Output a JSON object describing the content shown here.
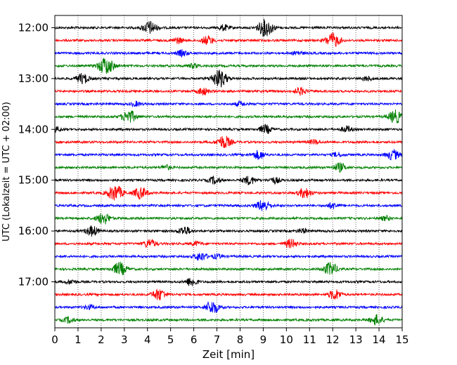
{
  "chart_data": {
    "type": "line",
    "xlabel": "Zeit  [min]",
    "ylabel": "UTC (Lokalzeit = UTC + 02:00)",
    "xlim": [
      0,
      15
    ],
    "x_ticks": [
      0,
      1,
      2,
      3,
      4,
      5,
      6,
      7,
      8,
      9,
      10,
      11,
      12,
      13,
      14,
      15
    ],
    "x_tick_labels": [
      "0",
      "1",
      "2",
      "3",
      "4",
      "5",
      "6",
      "7",
      "8",
      "9",
      "10",
      "11",
      "12",
      "13",
      "14",
      "15"
    ],
    "y_tick_labels": [
      "12:00",
      "13:00",
      "14:00",
      "15:00",
      "16:00",
      "17:00"
    ],
    "y_tick_rows": [
      0,
      4,
      8,
      12,
      16,
      20
    ],
    "grid": "vertical dotted",
    "row_interval_minutes": 15,
    "trace_colors": [
      "#000000",
      "#ff0000",
      "#0000ff",
      "#008000"
    ],
    "rows": [
      {
        "t": "12:00",
        "events": [
          [
            4.1,
            9
          ],
          [
            9.1,
            12
          ],
          [
            7.3,
            4
          ]
        ]
      },
      {
        "t": "12:15",
        "events": [
          [
            6.6,
            6
          ],
          [
            12.0,
            10
          ],
          [
            5.3,
            4
          ]
        ]
      },
      {
        "t": "12:30",
        "events": [
          [
            5.5,
            4
          ],
          [
            10.5,
            3
          ]
        ]
      },
      {
        "t": "12:45",
        "events": [
          [
            2.2,
            12
          ],
          [
            6.0,
            3
          ]
        ]
      },
      {
        "t": "13:00",
        "events": [
          [
            1.2,
            7
          ],
          [
            7.1,
            12
          ],
          [
            13.5,
            3
          ]
        ]
      },
      {
        "t": "13:15",
        "events": [
          [
            6.4,
            5
          ],
          [
            10.6,
            5
          ]
        ]
      },
      {
        "t": "13:30",
        "events": [
          [
            8.0,
            3
          ],
          [
            3.5,
            3
          ]
        ]
      },
      {
        "t": "13:45",
        "events": [
          [
            3.2,
            9
          ],
          [
            14.7,
            9
          ]
        ]
      },
      {
        "t": "14:00",
        "events": [
          [
            9.1,
            6
          ],
          [
            12.6,
            4
          ],
          [
            0.1,
            3
          ]
        ]
      },
      {
        "t": "14:15",
        "events": [
          [
            7.3,
            9
          ],
          [
            11.2,
            3
          ]
        ]
      },
      {
        "t": "14:30",
        "events": [
          [
            8.8,
            6
          ],
          [
            14.6,
            7
          ],
          [
            12.2,
            3
          ]
        ]
      },
      {
        "t": "14:45",
        "events": [
          [
            12.3,
            6
          ],
          [
            4.8,
            3
          ]
        ]
      },
      {
        "t": "15:00",
        "events": [
          [
            8.4,
            6
          ],
          [
            6.9,
            5
          ],
          [
            9.5,
            4
          ]
        ]
      },
      {
        "t": "15:15",
        "events": [
          [
            2.6,
            11
          ],
          [
            3.7,
            8
          ],
          [
            10.8,
            7
          ]
        ]
      },
      {
        "t": "15:30",
        "events": [
          [
            9.0,
            8
          ],
          [
            12.0,
            4
          ]
        ]
      },
      {
        "t": "15:45",
        "events": [
          [
            2.1,
            8
          ],
          [
            14.3,
            3
          ]
        ]
      },
      {
        "t": "16:00",
        "events": [
          [
            1.6,
            7
          ],
          [
            5.6,
            6
          ],
          [
            10.7,
            3
          ]
        ]
      },
      {
        "t": "16:15",
        "events": [
          [
            4.1,
            6
          ],
          [
            10.2,
            6
          ],
          [
            6.1,
            3
          ]
        ]
      },
      {
        "t": "16:30",
        "events": [
          [
            6.3,
            6
          ],
          [
            7.0,
            3
          ]
        ]
      },
      {
        "t": "16:45",
        "events": [
          [
            2.8,
            9
          ],
          [
            11.9,
            9
          ]
        ]
      },
      {
        "t": "17:00",
        "events": [
          [
            5.9,
            6
          ],
          [
            0.7,
            3
          ]
        ]
      },
      {
        "t": "17:15",
        "events": [
          [
            4.5,
            8
          ],
          [
            12.1,
            7
          ]
        ]
      },
      {
        "t": "17:30",
        "events": [
          [
            6.8,
            9
          ],
          [
            1.5,
            3
          ]
        ]
      },
      {
        "t": "17:45",
        "events": [
          [
            13.9,
            7
          ],
          [
            0.6,
            4
          ]
        ]
      }
    ]
  }
}
